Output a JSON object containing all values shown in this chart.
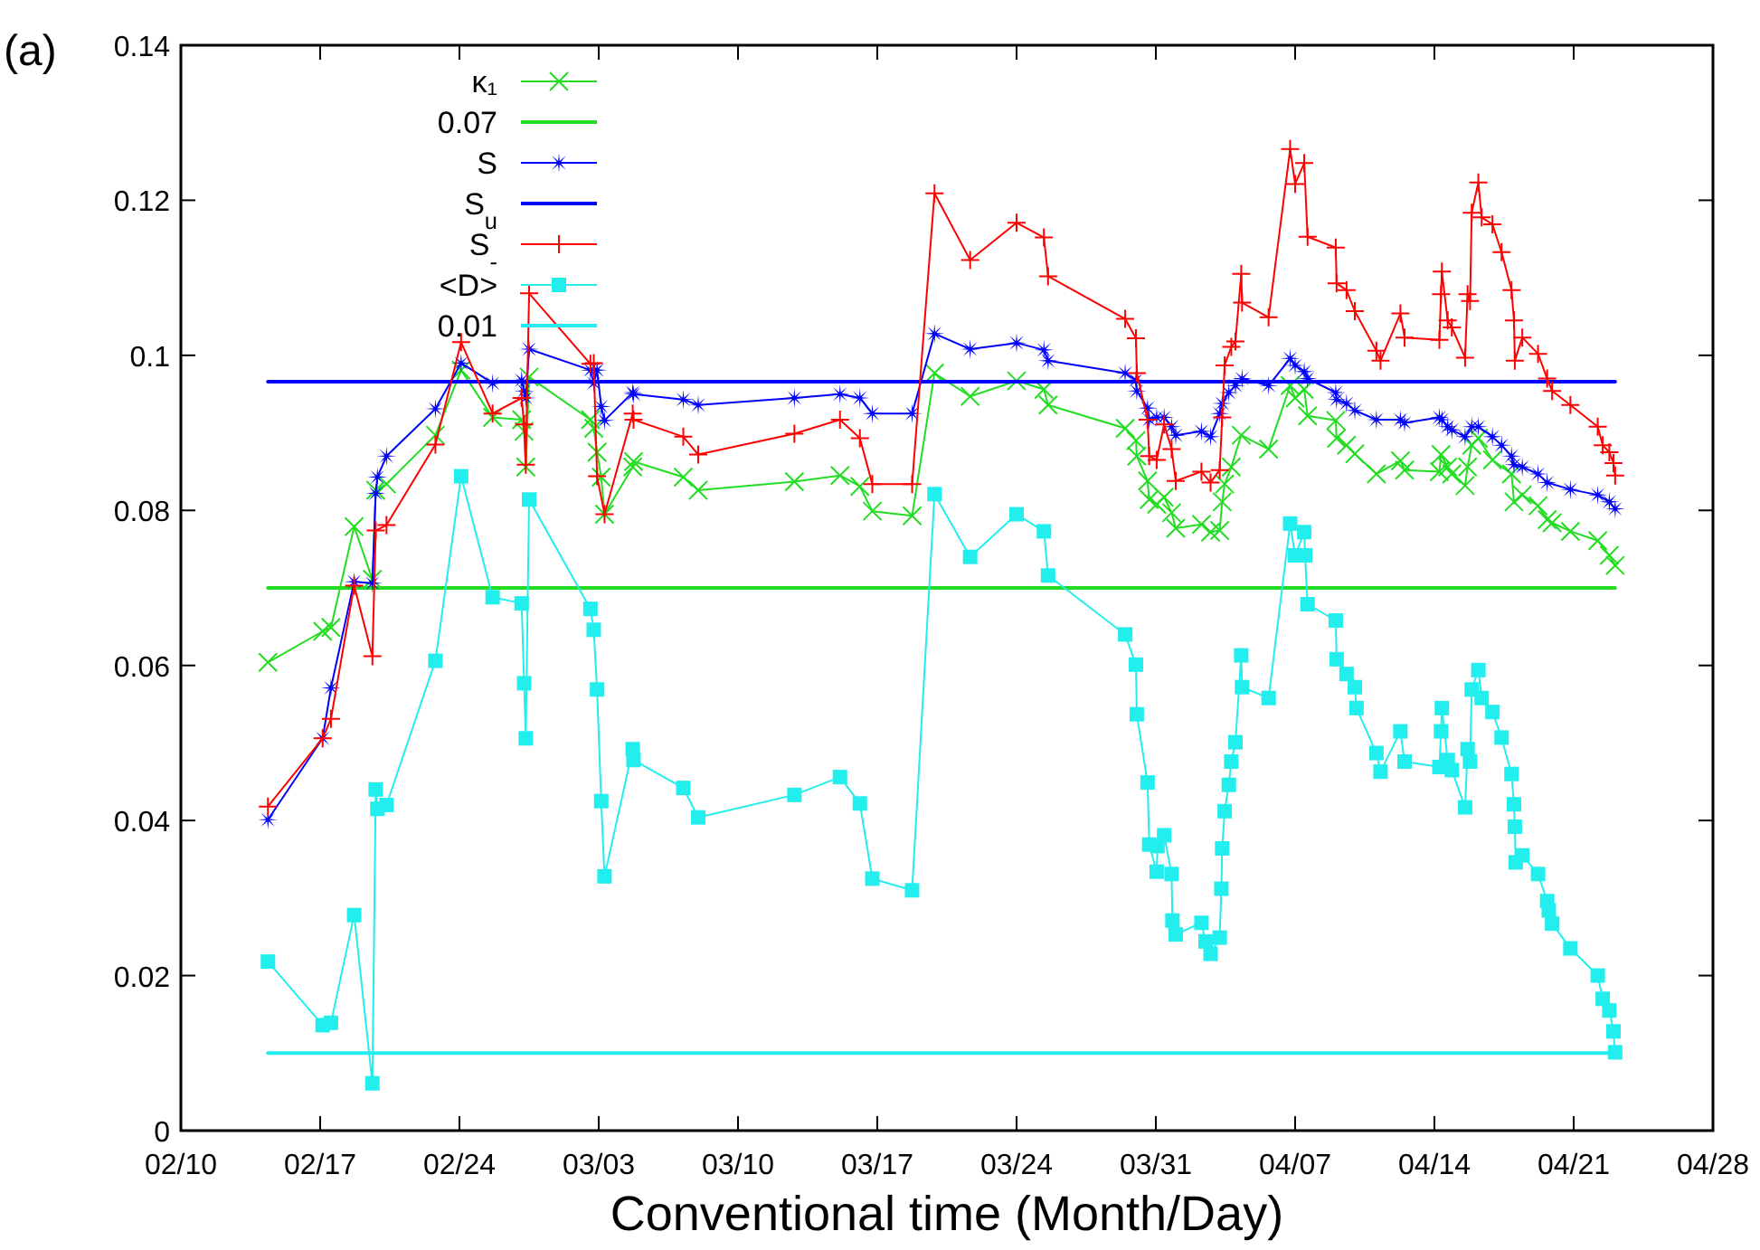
{
  "chart_data": {
    "type": "line",
    "title": "(a)",
    "xlabel": "Conventional time (Month/Day)",
    "xlim": [
      "--02-10",
      "--04-28"
    ],
    "xticks": [
      {
        "value": "--02-10",
        "label": "02/10"
      },
      {
        "value": "--02-17",
        "label": "02/17"
      },
      {
        "value": "--02-24",
        "label": "02/24"
      },
      {
        "value": "--03-03",
        "label": "03/03"
      },
      {
        "value": "--03-10",
        "label": "03/10"
      },
      {
        "value": "--03-17",
        "label": "03/17"
      },
      {
        "value": "--03-24",
        "label": "03/24"
      },
      {
        "value": "--03-31",
        "label": "03/31"
      },
      {
        "value": "--04-07",
        "label": "04/07"
      },
      {
        "value": "--04-14",
        "label": "04/14"
      },
      {
        "value": "--04-21",
        "label": "04/21"
      },
      {
        "value": "--04-28",
        "label": "04/28"
      }
    ],
    "ylim": [
      0,
      0.14
    ],
    "yticks": [
      0,
      0.02,
      0.04,
      0.06,
      0.08,
      0.1,
      0.12,
      0.14
    ],
    "grid": false,
    "legend": "top left",
    "series": [
      {
        "name": "κ₁",
        "color": "#22dd22",
        "marker": "cross",
        "x": [
          "--02-14T09:00",
          "--02-17T03:00",
          "--02-17T13:00",
          "--02-18T17:00",
          "--02-19T15:00",
          "--02-19T19:00",
          "--02-20T08:00",
          "--02-22T19:00",
          "--02-24T02:00",
          "--02-25T16:00",
          "--02-27T03:00",
          "--02-27T06:00",
          "--02-27T08:00",
          "--02-27T12:00",
          "--03-02T14:00",
          "--03-02T18:00",
          "--03-02T22:00",
          "--03-03T03:00",
          "--03-03T07:00",
          "--03-04T17:00",
          "--03-04T18:00",
          "--03-07T06:00",
          "--03-08T00:00",
          "--03-12T20:00",
          "--03-15T03:00",
          "--03-16T03:00",
          "--03-16T18:00",
          "--03-18T18:00",
          "--03-19T21:00",
          "--03-21T16:00",
          "--03-24T00:00",
          "--03-25T09:00",
          "--03-25T14:00",
          "--03-29T11:00",
          "--03-30T00:00",
          "--03-30T01:00",
          "--03-30T14:00",
          "--03-30T16:00",
          "--03-31T01:00",
          "--03-31T10:00",
          "--03-31T19:00",
          "--04-01T00:00",
          "--04-02T07:00",
          "--04-02T18:00",
          "--04-03T05:00",
          "--04-03T08:00",
          "--04-03T11:00",
          "--04-03T19:00",
          "--04-04T07:00",
          "--04-05T16:00",
          "--04-06T18:00",
          "--04-07T00:00",
          "--04-07T11:00",
          "--04-07T15:00",
          "--04-09T01:00",
          "--04-09T02:00",
          "--04-09T14:00",
          "--04-10T00:00",
          "--04-11T02:00",
          "--04-12T07:00",
          "--04-12T12:00",
          "--04-14T06:00",
          "--04-14T08:00",
          "--04-14T16:00",
          "--04-14T21:00",
          "--04-15T13:00",
          "--04-15T16:00",
          "--04-15T21:00",
          "--04-16T05:00",
          "--04-16T22:00",
          "--04-17T21:00",
          "--04-18T00:00",
          "--04-18T10:00",
          "--04-19T05:00",
          "--04-19T16:00",
          "--04-19T22:00",
          "--04-20T20:00",
          "--04-22T05:00",
          "--04-22T19:00",
          "--04-23T02:00"
        ],
        "values": [
          0.0604,
          0.0644,
          0.0649,
          0.0779,
          0.0711,
          0.0826,
          0.0834,
          0.0897,
          0.0981,
          0.092,
          0.0917,
          0.0902,
          0.0856,
          0.0972,
          0.0917,
          0.0906,
          0.0875,
          0.0843,
          0.0795,
          0.0856,
          0.0863,
          0.0843,
          0.0826,
          0.0837,
          0.0845,
          0.0831,
          0.0799,
          0.0793,
          0.0977,
          0.0947,
          0.0967,
          0.0956,
          0.0936,
          0.0906,
          0.089,
          0.087,
          0.0838,
          0.0814,
          0.0808,
          0.0817,
          0.0797,
          0.0777,
          0.0782,
          0.0772,
          0.0774,
          0.0811,
          0.0834,
          0.0856,
          0.0897,
          0.0879,
          0.0961,
          0.0945,
          0.0956,
          0.0922,
          0.0916,
          0.0893,
          0.0884,
          0.0873,
          0.0847,
          0.0864,
          0.0852,
          0.085,
          0.0872,
          0.0856,
          0.0847,
          0.0832,
          0.0856,
          0.0884,
          0.0893,
          0.0865,
          0.0847,
          0.0811,
          0.082,
          0.0806,
          0.0788,
          0.0784,
          0.0773,
          0.0761,
          0.0742,
          0.0729
        ]
      },
      {
        "name": "0.07",
        "color": "#22dd22",
        "marker": "none",
        "x": [
          "--02-14T09:00",
          "--04-23T02:00"
        ],
        "values": [
          0.07,
          0.07
        ]
      },
      {
        "name": "S",
        "color": "#0000ff",
        "marker": "star",
        "x": [
          "--02-14T09:00",
          "--02-17T03:00",
          "--02-17T13:00",
          "--02-18T17:00",
          "--02-19T15:00",
          "--02-19T19:00",
          "--02-19T21:00",
          "--02-20T08:00",
          "--02-22T19:00",
          "--02-24T02:00",
          "--02-25T16:00",
          "--02-27T03:00",
          "--02-27T06:00",
          "--02-27T08:00",
          "--02-27T12:00",
          "--03-02T14:00",
          "--03-02T18:00",
          "--03-02T22:00",
          "--03-03T03:00",
          "--03-03T07:00",
          "--03-04T17:00",
          "--03-04T18:00",
          "--03-07T06:00",
          "--03-08T00:00",
          "--03-12T20:00",
          "--03-15T03:00",
          "--03-16T03:00",
          "--03-16T18:00",
          "--03-18T18:00",
          "--03-19T21:00",
          "--03-21T16:00",
          "--03-24T00:00",
          "--03-25T09:00",
          "--03-25T14:00",
          "--03-29T11:00",
          "--03-30T00:00",
          "--03-30T01:00",
          "--03-30T14:00",
          "--03-30T16:00",
          "--03-31T01:00",
          "--03-31T10:00",
          "--03-31T19:00",
          "--04-01T00:00",
          "--04-02T07:00",
          "--04-02T18:00",
          "--04-03T05:00",
          "--04-03T08:00",
          "--04-03T16:00",
          "--04-04T00:00",
          "--04-04T08:00",
          "--04-05T16:00",
          "--04-06T18:00",
          "--04-07T00:00",
          "--04-07T11:00",
          "--04-07T15:00",
          "--04-09T01:00",
          "--04-09T02:00",
          "--04-09T14:00",
          "--04-10T00:00",
          "--04-11T02:00",
          "--04-12T07:00",
          "--04-12T12:00",
          "--04-14T06:00",
          "--04-14T09:00",
          "--04-14T16:00",
          "--04-14T21:00",
          "--04-15T13:00",
          "--04-15T21:00",
          "--04-16T05:00",
          "--04-16T22:00",
          "--04-17T09:00",
          "--04-17T21:00",
          "--04-18T00:00",
          "--04-18T10:00",
          "--04-19T05:00",
          "--04-19T16:00",
          "--04-20T20:00",
          "--04-22T05:00",
          "--04-22T19:00",
          "--04-23T02:00"
        ],
        "values": [
          0.0401,
          0.0506,
          0.0571,
          0.0708,
          0.0706,
          0.0822,
          0.0843,
          0.087,
          0.0931,
          0.099,
          0.0964,
          0.0968,
          0.0954,
          0.0945,
          0.1008,
          0.0981,
          0.0964,
          0.0981,
          0.0934,
          0.0916,
          0.0952,
          0.095,
          0.0943,
          0.0936,
          0.0945,
          0.095,
          0.0945,
          0.0925,
          0.0925,
          0.1028,
          0.1008,
          0.1016,
          0.1007,
          0.0993,
          0.0977,
          0.0968,
          0.0954,
          0.0932,
          0.0917,
          0.092,
          0.092,
          0.0908,
          0.0897,
          0.0902,
          0.0895,
          0.0925,
          0.0938,
          0.0952,
          0.0961,
          0.097,
          0.0961,
          0.0996,
          0.0987,
          0.0979,
          0.097,
          0.0952,
          0.0943,
          0.0938,
          0.0929,
          0.0917,
          0.0917,
          0.0913,
          0.092,
          0.0917,
          0.0908,
          0.0904,
          0.0895,
          0.0908,
          0.0908,
          0.0895,
          0.0884,
          0.087,
          0.0859,
          0.0856,
          0.0847,
          0.0836,
          0.0827,
          0.082,
          0.0811,
          0.0802
        ]
      },
      {
        "name": "S$_{u}$",
        "color": "#0000ff",
        "marker": "none",
        "x": [
          "--02-14T09:00",
          "--04-23T02:00"
        ],
        "values": [
          0.0966,
          0.0966
        ]
      },
      {
        "name": "S$_{-}$",
        "color": "#ff0000",
        "marker": "plus",
        "x": [
          "--02-14T09:00",
          "--02-17T03:00",
          "--02-17T13:00",
          "--02-18T17:00",
          "--02-19T15:00",
          "--02-19T19:00",
          "--02-20T08:00",
          "--02-22T19:00",
          "--02-24T02:00",
          "--02-25T16:00",
          "--02-27T03:00",
          "--02-27T06:00",
          "--02-27T08:00",
          "--02-27T12:00",
          "--03-02T14:00",
          "--03-02T18:00",
          "--03-02T22:00",
          "--03-03T07:00",
          "--03-04T17:00",
          "--03-04T18:00",
          "--03-07T06:00",
          "--03-08T00:00",
          "--03-12T20:00",
          "--03-15T03:00",
          "--03-16T03:00",
          "--03-16T18:00",
          "--03-18T18:00",
          "--03-19T21:00",
          "--03-21T16:00",
          "--03-24T00:00",
          "--03-25T09:00",
          "--03-25T14:00",
          "--03-29T11:00",
          "--03-30T00:00",
          "--03-30T01:00",
          "--03-30T14:00",
          "--03-30T16:00",
          "--03-31T01:00",
          "--03-31T10:00",
          "--03-31T19:00",
          "--04-01T00:00",
          "--04-02T07:00",
          "--04-02T18:00",
          "--04-03T05:00",
          "--04-03T08:00",
          "--04-03T11:00",
          "--04-03T19:00",
          "--04-04T00:00",
          "--04-04T07:00",
          "--04-04T08:00",
          "--04-05T16:00",
          "--04-06T18:00",
          "--04-07T00:00",
          "--04-07T11:00",
          "--04-07T15:00",
          "--04-09T01:00",
          "--04-09T02:00",
          "--04-09T14:00",
          "--04-10T00:00",
          "--04-11T02:00",
          "--04-11T07:00",
          "--04-12T07:00",
          "--04-12T12:00",
          "--04-14T06:00",
          "--04-14T08:00",
          "--04-14T09:00",
          "--04-14T16:00",
          "--04-14T21:00",
          "--04-15T13:00",
          "--04-15T16:00",
          "--04-15T19:00",
          "--04-15T21:00",
          "--04-16T05:00",
          "--04-16T09:00",
          "--04-16T22:00",
          "--04-17T09:00",
          "--04-17T21:00",
          "--04-18T00:00",
          "--04-18T01:00",
          "--04-18T10:00",
          "--04-19T05:00",
          "--04-19T16:00",
          "--04-19T22:00",
          "--04-20T20:00",
          "--04-22T05:00",
          "--04-22T11:00",
          "--04-22T19:00",
          "--04-23T00:00",
          "--04-23T02:00"
        ],
        "values": [
          0.0418,
          0.0506,
          0.0531,
          0.0703,
          0.0612,
          0.0774,
          0.0781,
          0.0885,
          0.1017,
          0.0925,
          0.0945,
          0.0911,
          0.0859,
          0.108,
          0.0989,
          0.099,
          0.0844,
          0.0795,
          0.0925,
          0.0917,
          0.0895,
          0.0872,
          0.0899,
          0.0917,
          0.0893,
          0.0834,
          0.0834,
          0.1209,
          0.1123,
          0.1171,
          0.1152,
          0.1102,
          0.1047,
          0.1022,
          0.0977,
          0.0917,
          0.087,
          0.0865,
          0.0911,
          0.0879,
          0.0838,
          0.085,
          0.0836,
          0.0852,
          0.092,
          0.0987,
          0.1011,
          0.1018,
          0.1105,
          0.1068,
          0.1049,
          0.1266,
          0.1221,
          0.1248,
          0.1153,
          0.1139,
          0.1093,
          0.1084,
          0.1057,
          0.1006,
          0.0993,
          0.1054,
          0.1023,
          0.102,
          0.1079,
          0.1108,
          0.1045,
          0.1036,
          0.0997,
          0.1079,
          0.107,
          0.1184,
          0.1223,
          0.1178,
          0.1169,
          0.1133,
          0.1084,
          0.1045,
          0.0993,
          0.1023,
          0.1002,
          0.097,
          0.0954,
          0.0936,
          0.0908,
          0.0884,
          0.0875,
          0.0861,
          0.0845
        ]
      },
      {
        "name": "<D>",
        "color": "#22eeee",
        "marker": "square",
        "x": [
          "--02-14T09:00",
          "--02-17T03:00",
          "--02-17T13:00",
          "--02-18T17:00",
          "--02-19T15:00",
          "--02-19T19:00",
          "--02-19T21:00",
          "--02-20T08:00",
          "--02-22T19:00",
          "--02-24T02:00",
          "--02-25T16:00",
          "--02-27T03:00",
          "--02-27T06:00",
          "--02-27T08:00",
          "--02-27T12:00",
          "--03-02T14:00",
          "--03-02T18:00",
          "--03-02T22:00",
          "--03-03T03:00",
          "--03-03T07:00",
          "--03-04T17:00",
          "--03-04T18:00",
          "--03-07T06:00",
          "--03-08T00:00",
          "--03-12T20:00",
          "--03-15T03:00",
          "--03-16T03:00",
          "--03-16T18:00",
          "--03-18T18:00",
          "--03-19T21:00",
          "--03-21T16:00",
          "--03-24T00:00",
          "--03-25T09:00",
          "--03-25T14:00",
          "--03-29T11:00",
          "--03-30T00:00",
          "--03-30T01:00",
          "--03-30T14:00",
          "--03-30T16:00",
          "--03-31T01:00",
          "--03-31T02:00",
          "--03-31T10:00",
          "--03-31T19:00",
          "--03-31T20:00",
          "--04-01T00:00",
          "--04-02T07:00",
          "--04-02T12:00",
          "--04-02T18:00",
          "--04-03T05:00",
          "--04-03T07:00",
          "--04-03T08:00",
          "--04-03T11:00",
          "--04-03T16:00",
          "--04-03T19:00",
          "--04-04T00:00",
          "--04-04T07:00",
          "--04-04T08:00",
          "--04-05T16:00",
          "--04-06T18:00",
          "--04-07T00:00",
          "--04-07T11:00",
          "--04-07T12:00",
          "--04-07T15:00",
          "--04-09T01:00",
          "--04-09T02:00",
          "--04-09T14:00",
          "--04-10T00:00",
          "--04-10T02:00",
          "--04-11T02:00",
          "--04-11T07:00",
          "--04-12T07:00",
          "--04-12T12:00",
          "--04-14T06:00",
          "--04-14T08:00",
          "--04-14T09:00",
          "--04-14T16:00",
          "--04-14T21:00",
          "--04-15T13:00",
          "--04-15T16:00",
          "--04-15T19:00",
          "--04-15T21:00",
          "--04-16T05:00",
          "--04-16T09:00",
          "--04-16T22:00",
          "--04-17T09:00",
          "--04-17T21:00",
          "--04-18T00:00",
          "--04-18T01:00",
          "--04-18T02:00",
          "--04-18T10:00",
          "--04-19T05:00",
          "--04-19T16:00",
          "--04-19T18:00",
          "--04-19T22:00",
          "--04-20T20:00",
          "--04-22T05:00",
          "--04-22T11:00",
          "--04-22T19:00",
          "--04-23T00:00",
          "--04-23T02:00"
        ],
        "values": [
          0.0218,
          0.0136,
          0.0139,
          0.0278,
          0.0061,
          0.044,
          0.0415,
          0.042,
          0.0606,
          0.0844,
          0.0688,
          0.068,
          0.0577,
          0.0506,
          0.0814,
          0.0673,
          0.0646,
          0.0569,
          0.0425,
          0.0328,
          0.0492,
          0.0478,
          0.0442,
          0.0404,
          0.0433,
          0.0456,
          0.0422,
          0.0325,
          0.031,
          0.0821,
          0.074,
          0.0795,
          0.0773,
          0.0716,
          0.064,
          0.0601,
          0.0537,
          0.0449,
          0.0369,
          0.0334,
          0.0367,
          0.0381,
          0.0331,
          0.0271,
          0.0253,
          0.0268,
          0.0244,
          0.0228,
          0.0249,
          0.0312,
          0.0364,
          0.0412,
          0.0446,
          0.0476,
          0.0501,
          0.0613,
          0.0572,
          0.0558,
          0.0783,
          0.0742,
          0.0772,
          0.0742,
          0.0679,
          0.0658,
          0.0608,
          0.0589,
          0.0572,
          0.0545,
          0.0487,
          0.0463,
          0.0515,
          0.0476,
          0.0469,
          0.0515,
          0.0545,
          0.0478,
          0.0465,
          0.0417,
          0.0492,
          0.0476,
          0.0569,
          0.0594,
          0.0558,
          0.054,
          0.0507,
          0.046,
          0.0421,
          0.0392,
          0.0346,
          0.0355,
          0.0331,
          0.0296,
          0.0284,
          0.0267,
          0.0235,
          0.02,
          0.017,
          0.0155,
          0.0128,
          0.0101
        ]
      },
      {
        "name": "0.01",
        "color": "#22eeee",
        "marker": "none",
        "x": [
          "--02-14T09:00",
          "--04-23T02:00"
        ],
        "values": [
          0.01,
          0.01
        ]
      }
    ]
  }
}
